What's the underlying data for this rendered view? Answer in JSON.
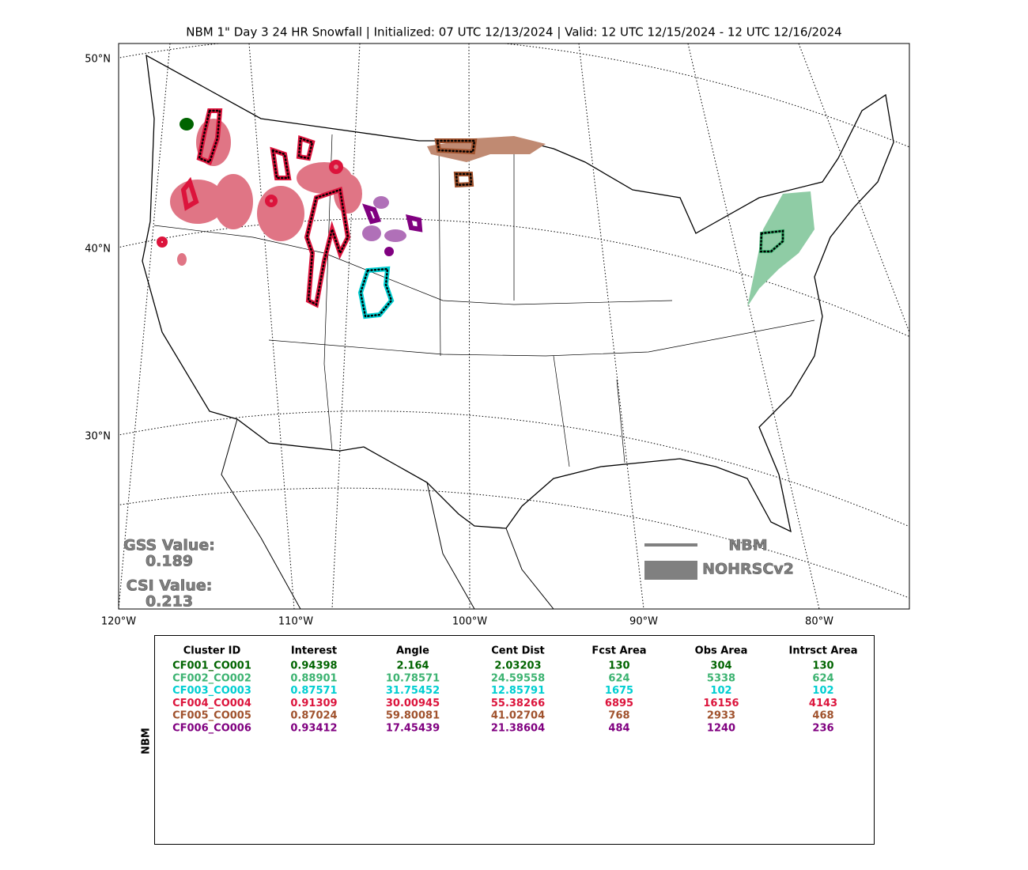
{
  "title": "NBM 1\" Day 3 24 HR Snowfall | Initialized: 07 UTC 12/13/2024 | Valid: 12 UTC 12/15/2024 - 12 UTC 12/16/2024",
  "map": {
    "lat_labels": [
      "50°N",
      "40°N",
      "30°N"
    ],
    "lon_labels": [
      "120°W",
      "110°W",
      "100°W",
      "90°W",
      "80°W"
    ],
    "scores": [
      {
        "label": "GSS Value:",
        "value": "0.189"
      },
      {
        "label": "CSI Value:",
        "value": "0.213"
      }
    ],
    "legend": [
      "NBM",
      "NOHRSCv2"
    ]
  },
  "table": {
    "side_label": "NBM",
    "header": [
      "Cluster ID",
      "Interest",
      "Angle",
      "Cent Dist",
      "Fcst Area",
      "Obs Area",
      "Intrsct Area"
    ],
    "rows": [
      {
        "color": "#006400",
        "cells": [
          "CF001_CO001",
          "0.94398",
          "2.164",
          "2.03203",
          "130",
          "304",
          "130"
        ]
      },
      {
        "color": "#3cb371",
        "cells": [
          "CF002_CO002",
          "0.88901",
          "10.78571",
          "24.59558",
          "624",
          "5338",
          "624"
        ]
      },
      {
        "color": "#00ced1",
        "cells": [
          "CF003_CO003",
          "0.87571",
          "31.75452",
          "12.85791",
          "1675",
          "102",
          "102"
        ]
      },
      {
        "color": "#dc143c",
        "cells": [
          "CF004_CO004",
          "0.91309",
          "30.00945",
          "55.38266",
          "6895",
          "16156",
          "4143"
        ]
      },
      {
        "color": "#a0522d",
        "cells": [
          "CF005_CO005",
          "0.87024",
          "59.80081",
          "41.02704",
          "768",
          "2933",
          "468"
        ]
      },
      {
        "color": "#800080",
        "cells": [
          "CF006_CO006",
          "0.93412",
          "17.45439",
          "21.38604",
          "484",
          "1240",
          "236"
        ]
      }
    ]
  }
}
